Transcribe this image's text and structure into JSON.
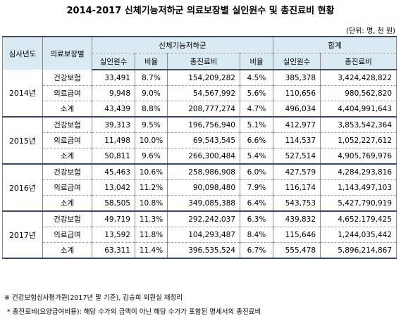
{
  "title": "2014-2017 신체기능저하군 의료보장별 실인원수 및 총진료비 현황",
  "unit": "(단위: 명, 천 원)",
  "headers": {
    "period": "심사년도",
    "type": "의료보장별",
    "group1": "신체기능저하군",
    "group2": "합계",
    "count": "실인원수",
    "ratio": "비율",
    "cost": "총진료비"
  },
  "years": [
    {
      "year": "2014년",
      "rows": [
        {
          "type": "건강보험",
          "count": "33,491",
          "count_ratio": "8.7%",
          "cost": "154,209,282",
          "cost_ratio": "4.5%",
          "total_count": "385,378",
          "total_cost": "3,424,428,822"
        },
        {
          "type": "의료급여",
          "count": "9,948",
          "count_ratio": "9.0%",
          "cost": "54,567,992",
          "cost_ratio": "5.6%",
          "total_count": "110,656",
          "total_cost": "980,562,820"
        },
        {
          "type": "소계",
          "count": "43,439",
          "count_ratio": "8.8%",
          "cost": "208,777,274",
          "cost_ratio": "4.7%",
          "total_count": "496,034",
          "total_cost": "4,404,991,643"
        }
      ]
    },
    {
      "year": "2015년",
      "rows": [
        {
          "type": "건강보험",
          "count": "39,313",
          "count_ratio": "9.5%",
          "cost": "196,756,940",
          "cost_ratio": "5.1%",
          "total_count": "412,977",
          "total_cost": "3,853,542,364"
        },
        {
          "type": "의료급여",
          "count": "11,498",
          "count_ratio": "10.0%",
          "cost": "69,543,545",
          "cost_ratio": "6.6%",
          "total_count": "114,537",
          "total_cost": "1,052,227,612"
        },
        {
          "type": "소계",
          "count": "50,811",
          "count_ratio": "9.6%",
          "cost": "266,300,484",
          "cost_ratio": "5.4%",
          "total_count": "527,514",
          "total_cost": "4,905,769,976"
        }
      ]
    },
    {
      "year": "2016년",
      "rows": [
        {
          "type": "건강보험",
          "count": "45,463",
          "count_ratio": "10.6%",
          "cost": "258,986,908",
          "cost_ratio": "6.0%",
          "total_count": "427,579",
          "total_cost": "4,284,293,816"
        },
        {
          "type": "의료급여",
          "count": "13,042",
          "count_ratio": "11.2%",
          "cost": "90,098,480",
          "cost_ratio": "7.9%",
          "total_count": "116,174",
          "total_cost": "1,143,497,103"
        },
        {
          "type": "소계",
          "count": "58,505",
          "count_ratio": "10.8%",
          "cost": "349,085,388",
          "cost_ratio": "6.4%",
          "total_count": "543,753",
          "total_cost": "5,427,790,919"
        }
      ]
    },
    {
      "year": "2017년",
      "rows": [
        {
          "type": "건강보험",
          "count": "49,719",
          "count_ratio": "11.3%",
          "cost": "292,242,037",
          "cost_ratio": "6.3%",
          "total_count": "439,832",
          "total_cost": "4,652,179,425"
        },
        {
          "type": "의료급여",
          "count": "13,592",
          "count_ratio": "11.8%",
          "cost": "104,293,487",
          "cost_ratio": "8.4%",
          "total_count": "115,646",
          "total_cost": "1,244,035,442"
        },
        {
          "type": "소계",
          "count": "63,311",
          "count_ratio": "11.4%",
          "cost": "396,535,524",
          "cost_ratio": "6.7%",
          "total_count": "555,478",
          "total_cost": "5,896,214,867"
        }
      ]
    }
  ],
  "notes": [
    "※ 건강보험심사평가원(2017년 말 기준), 김승희 의원실 재정리",
    "* 총진료비(요양급여비용): 해당 수가의 금액이 아닌 해당 수가가 포함된 명세서의 총진료비"
  ]
}
